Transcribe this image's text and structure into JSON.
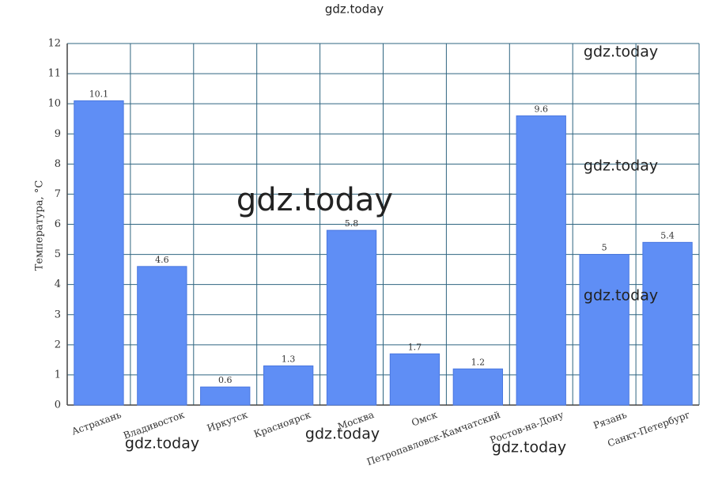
{
  "chart_data": {
    "type": "bar",
    "y_label": "Температура, °C",
    "categories": [
      "Астрахань",
      "Владивосток",
      "Иркутск",
      "Красноярск",
      "Москва",
      "Омск",
      "Петропавловск-Камчатский",
      "Ростов-на-Дону",
      "Рязань",
      "Санкт-Петербург"
    ],
    "values": [
      10.1,
      4.6,
      0.6,
      1.3,
      5.8,
      1.7,
      1.2,
      9.6,
      5,
      5.4
    ],
    "color": "#5f8ef5",
    "ylim": [
      0,
      12
    ],
    "yticks": [
      0,
      1,
      2,
      3,
      4,
      5,
      6,
      7,
      8,
      9,
      10,
      11,
      12
    ],
    "grid": true,
    "annotations": [
      "gdz.today",
      "gdz.today",
      "gdz.today",
      "gdz.today",
      "gdz.today",
      "gdz.today",
      "gdz.today",
      "gdz.today"
    ]
  }
}
